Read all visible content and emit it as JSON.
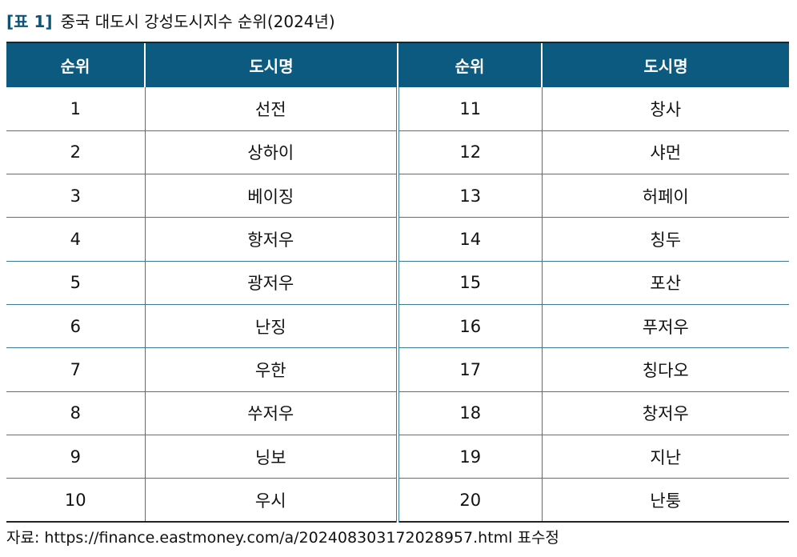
{
  "caption": {
    "tag": "[표 1]",
    "text": "중국 대도시 강성도시지수 순위(2024년)"
  },
  "headers": [
    "순위",
    "도시명",
    "순위",
    "도시명"
  ],
  "rows": [
    [
      "1",
      "선전",
      "11",
      "창사"
    ],
    [
      "2",
      "상하이",
      "12",
      "샤먼"
    ],
    [
      "3",
      "베이징",
      "13",
      "허페이"
    ],
    [
      "4",
      "항저우",
      "14",
      "칭두"
    ],
    [
      "5",
      "광저우",
      "15",
      "포산"
    ],
    [
      "6",
      "난징",
      "16",
      "푸저우"
    ],
    [
      "7",
      "우한",
      "17",
      "칭다오"
    ],
    [
      "8",
      "쑤저우",
      "18",
      "창저우"
    ],
    [
      "9",
      "닝보",
      "19",
      "지난"
    ],
    [
      "10",
      "우시",
      "20",
      "난퉁"
    ]
  ],
  "source": "자료: https://finance.eastmoney.com/a/202408303172028957.html 표수정",
  "colors": {
    "header_bg": "#0d5a80",
    "tag": "#0d5378",
    "rule": "#3d7896"
  }
}
